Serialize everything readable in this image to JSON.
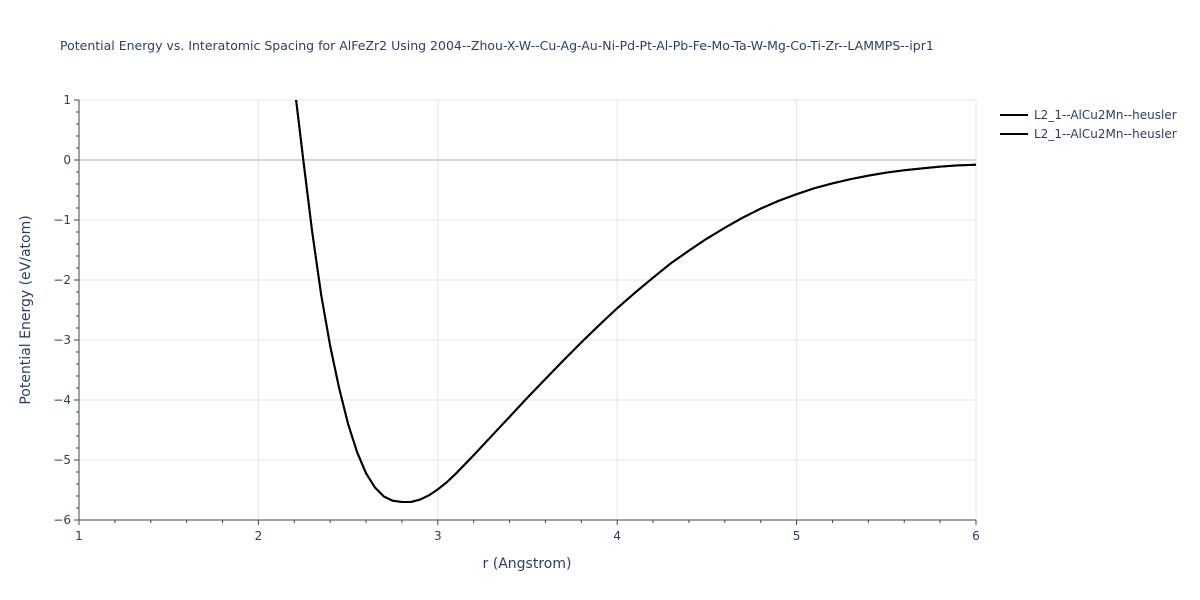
{
  "chart_data": {
    "type": "line",
    "title": "Potential Energy vs. Interatomic Spacing for AlFeZr2 Using 2004--Zhou-X-W--Cu-Ag-Au-Ni-Pd-Pt-Al-Pb-Fe-Mo-Ta-W-Mg-Co-Ti-Zr--LAMMPS--ipr1",
    "xlabel": "r (Angstrom)",
    "ylabel": "Potential Energy (eV/atom)",
    "xlim": [
      1,
      6
    ],
    "ylim": [
      -6,
      1
    ],
    "x_ticks": [
      1,
      2,
      3,
      4,
      5,
      6
    ],
    "y_ticks": [
      1,
      0,
      -1,
      -2,
      -3,
      -4,
      -5,
      -6
    ],
    "x_tick_labels": [
      "1",
      "2",
      "3",
      "4",
      "5",
      "6"
    ],
    "y_tick_labels": [
      "1",
      "0",
      "−1",
      "−2",
      "−3",
      "−4",
      "−5",
      "−6"
    ],
    "grid": true,
    "legend_position": "top-right",
    "series": [
      {
        "name": "L2_1--AlCu2Mn--heusler",
        "color": "#000000",
        "x": [
          2.21,
          2.25,
          2.3,
          2.35,
          2.4,
          2.45,
          2.5,
          2.55,
          2.6,
          2.65,
          2.7,
          2.75,
          2.8,
          2.85,
          2.9,
          2.95,
          3.0,
          3.05,
          3.1,
          3.2,
          3.3,
          3.4,
          3.5,
          3.6,
          3.7,
          3.8,
          3.9,
          4.0,
          4.1,
          4.2,
          4.3,
          4.4,
          4.5,
          4.6,
          4.7,
          4.8,
          4.9,
          5.0,
          5.1,
          5.2,
          5.3,
          5.4,
          5.5,
          5.6,
          5.7,
          5.8,
          5.9,
          6.0
        ],
        "y": [
          1.0,
          0.0,
          -1.2,
          -2.25,
          -3.1,
          -3.8,
          -4.4,
          -4.87,
          -5.22,
          -5.46,
          -5.61,
          -5.68,
          -5.7,
          -5.7,
          -5.66,
          -5.59,
          -5.49,
          -5.37,
          -5.23,
          -4.92,
          -4.6,
          -4.28,
          -3.96,
          -3.65,
          -3.34,
          -3.04,
          -2.75,
          -2.47,
          -2.21,
          -1.96,
          -1.72,
          -1.51,
          -1.31,
          -1.13,
          -0.96,
          -0.81,
          -0.68,
          -0.57,
          -0.47,
          -0.39,
          -0.32,
          -0.26,
          -0.21,
          -0.17,
          -0.14,
          -0.11,
          -0.09,
          -0.08
        ]
      },
      {
        "name": "L2_1--AlCu2Mn--heusler",
        "color": "#000000",
        "x": [
          2.21,
          2.25,
          2.3,
          2.35,
          2.4,
          2.45,
          2.5,
          2.55,
          2.6,
          2.65,
          2.7,
          2.75,
          2.8,
          2.85,
          2.9,
          2.95,
          3.0,
          3.05,
          3.1,
          3.2,
          3.3,
          3.4,
          3.5,
          3.6,
          3.7,
          3.8,
          3.9,
          4.0,
          4.1,
          4.2,
          4.3,
          4.4,
          4.5,
          4.6,
          4.7,
          4.8,
          4.9,
          5.0,
          5.1,
          5.2,
          5.3,
          5.4,
          5.5,
          5.6,
          5.7,
          5.8,
          5.9,
          6.0
        ],
        "y": [
          1.0,
          0.0,
          -1.2,
          -2.25,
          -3.1,
          -3.8,
          -4.4,
          -4.87,
          -5.22,
          -5.46,
          -5.61,
          -5.68,
          -5.7,
          -5.7,
          -5.66,
          -5.59,
          -5.49,
          -5.37,
          -5.23,
          -4.92,
          -4.6,
          -4.28,
          -3.96,
          -3.65,
          -3.34,
          -3.04,
          -2.75,
          -2.47,
          -2.21,
          -1.96,
          -1.72,
          -1.51,
          -1.31,
          -1.13,
          -0.96,
          -0.81,
          -0.68,
          -0.57,
          -0.47,
          -0.39,
          -0.32,
          -0.26,
          -0.21,
          -0.17,
          -0.14,
          -0.11,
          -0.09,
          -0.08
        ]
      }
    ]
  }
}
